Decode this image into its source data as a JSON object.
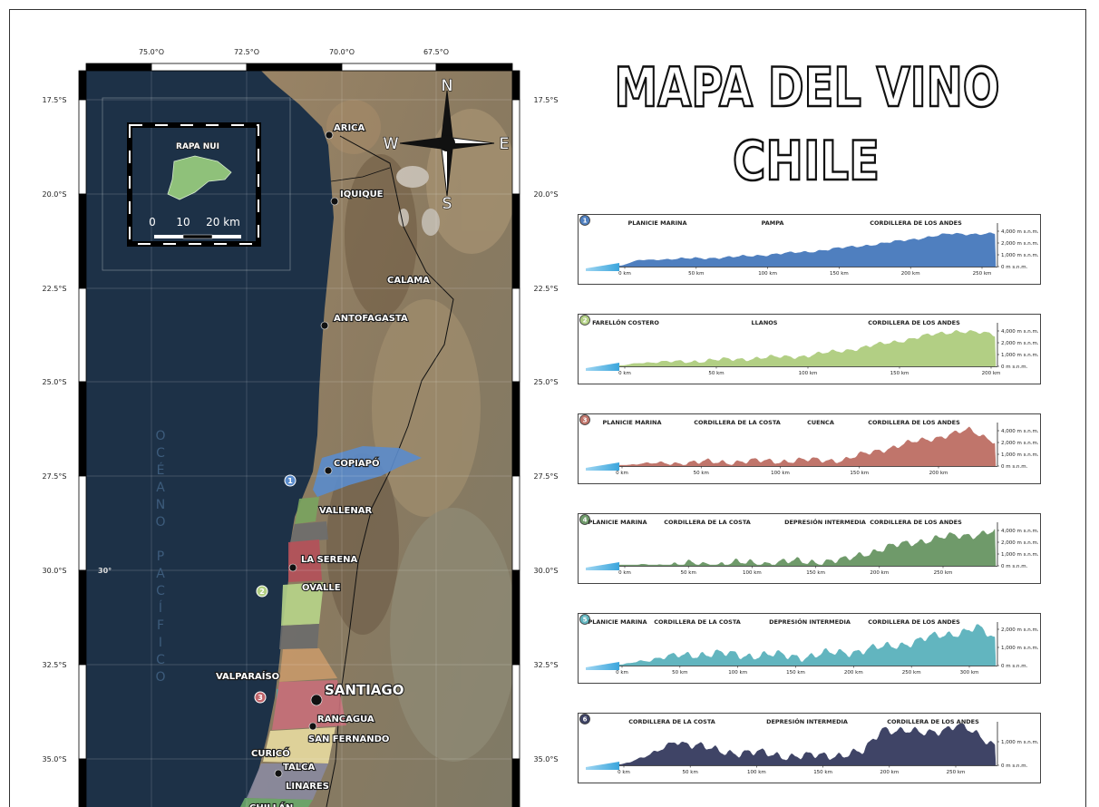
{
  "title": {
    "line1": "MAPA DEL VINO",
    "line2": "CHILE"
  },
  "map": {
    "lon_labels": [
      "75.0°O",
      "72.5°O",
      "70.0°O",
      "67.5°O"
    ],
    "lat_labels": [
      "17.5°S",
      "20.0°S",
      "22.5°S",
      "25.0°S",
      "27.5°S",
      "30.0°S",
      "32.5°S",
      "35.0°S"
    ],
    "graticule_label": "30°",
    "ocean_label": "OCÉANO PACÍFICO",
    "compass": {
      "north": "N",
      "south": "S",
      "east": "E",
      "west": "W"
    },
    "cities": [
      "ARICA",
      "IQUIQUE",
      "CALAMA",
      "ANTOFAGASTA",
      "COPIAPÓ",
      "VALLENAR",
      "LA SERENA",
      "OVALLE",
      "VALPARAÍSO",
      "SANTIAGO",
      "RANCAGUA",
      "SAN FERNANDO",
      "CURICÓ",
      "TALCA",
      "LINARES",
      "CHILLÁN"
    ],
    "region_markers": [
      {
        "label": "1",
        "color": "#5b8ccc"
      },
      {
        "label": "2",
        "color": "#b2cf84"
      },
      {
        "label": "3",
        "color": "#c0656b"
      }
    ],
    "inset": {
      "title": "RAPA NUI",
      "scale_labels": [
        "0",
        "10",
        "20 km"
      ]
    }
  },
  "profiles": [
    {
      "number": "1",
      "color": "#4f7fbf",
      "zones": [
        "PLANICIE MARINA",
        "PAMPA",
        "CORDILLERA DE LOS ANDES"
      ],
      "x_ticks": [
        "0 km",
        "50 km",
        "100 km",
        "150 km",
        "200 km",
        "250 km"
      ],
      "y_ticks": [
        "4,000 m s.n.m.",
        "2,000 m s.n.m.",
        "1,000 m s.n.m.",
        "0 m s.n.m."
      ]
    },
    {
      "number": "2",
      "color": "#b2cf84",
      "zones": [
        "FARELLÓN COSTERO",
        "LLANOS",
        "CORDILLERA DE LOS ANDES"
      ],
      "x_ticks": [
        "0 km",
        "50 km",
        "100 km",
        "150 km",
        "200 km"
      ],
      "y_ticks": [
        "4,000 m s.n.m.",
        "2,000 m s.n.m.",
        "1,000 m s.n.m.",
        "0 m s.n.m."
      ]
    },
    {
      "number": "3",
      "color": "#c0756b",
      "zones": [
        "PLANICIE MARINA",
        "CORDILLERA DE LA COSTA",
        "CUENCA",
        "CORDILLERA DE LOS ANDES"
      ],
      "x_ticks": [
        "0 km",
        "50 km",
        "100 km",
        "150 km",
        "200 km"
      ],
      "y_ticks": [
        "4,000 m s.n.m.",
        "2,000 m s.n.m.",
        "1,000 m s.n.m.",
        "0 m s.n.m."
      ]
    },
    {
      "number": "4",
      "color": "#6f9a6a",
      "zones": [
        "PLANICIE MARINA",
        "CORDILLERA DE LA COSTA",
        "DEPRESIÓN INTERMEDIA",
        "CORDILLERA DE LOS ANDES"
      ],
      "x_ticks": [
        "0 km",
        "50 km",
        "100 km",
        "150 km",
        "200 km",
        "250 km"
      ],
      "y_ticks": [
        "4,000 m s.n.m.",
        "2,000 m s.n.m.",
        "1,000 m s.n.m.",
        "0 m s.n.m."
      ]
    },
    {
      "number": "5",
      "color": "#62b5bf",
      "zones": [
        "PLANICIE MARINA",
        "CORDILLERA DE LA COSTA",
        "DEPRESIÓN INTERMEDIA",
        "CORDILLERA DE LOS ANDES"
      ],
      "x_ticks": [
        "0 km",
        "50 km",
        "100 km",
        "150 km",
        "200 km",
        "250 km",
        "300 km"
      ],
      "y_ticks": [
        "2,000 m s.n.m.",
        "1,000 m s.n.m.",
        "0 m s.n.m."
      ]
    },
    {
      "number": "6",
      "color": "#3f4466",
      "zones": [
        "CORDILLERA DE LA COSTA",
        "DEPRESIÓN INTERMEDIA",
        "CORDILLERA DE LOS ANDES"
      ],
      "x_ticks": [
        "0 km",
        "50 km",
        "100 km",
        "150 km",
        "200 km",
        "250 km"
      ],
      "y_ticks": [
        "1,000 m s.n.m.",
        "0 m s.n.m."
      ]
    }
  ]
}
